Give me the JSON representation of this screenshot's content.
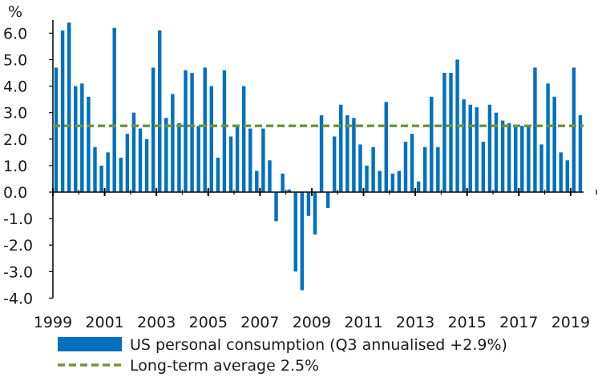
{
  "chart_data": {
    "type": "bar",
    "unit_label": "%",
    "ylim": [
      -4.0,
      6.5
    ],
    "yticks": [
      "6.0",
      "5.0",
      "4.0",
      "3.0",
      "2.0",
      "1.0",
      "0.0",
      "-1.0",
      "-2.0",
      "-3.0",
      "-4.0"
    ],
    "ytick_values": [
      6,
      5,
      4,
      3,
      2,
      1,
      0,
      -1,
      -2,
      -3,
      -4
    ],
    "xticks": [
      "1999",
      "2001",
      "2003",
      "2005",
      "2007",
      "2009",
      "2011",
      "2013",
      "2015",
      "2017",
      "2019"
    ],
    "start_year": 1999,
    "periods_per_year": 4,
    "series": [
      {
        "name": "US personal consumption (Q3 annualised +2.9%)",
        "type": "bar",
        "color": "#0070c0",
        "values": [
          4.7,
          6.1,
          6.4,
          4.0,
          4.1,
          3.6,
          1.7,
          1.0,
          1.5,
          6.2,
          1.3,
          2.2,
          3.0,
          2.4,
          2.0,
          4.7,
          6.1,
          2.8,
          3.7,
          2.6,
          4.6,
          4.5,
          2.5,
          4.7,
          4.0,
          1.3,
          4.6,
          2.1,
          2.5,
          4.0,
          2.4,
          0.8,
          2.4,
          1.2,
          -1.1,
          0.7,
          0.1,
          -3.0,
          -3.7,
          -0.9,
          -1.6,
          2.9,
          -0.6,
          2.1,
          3.3,
          2.9,
          2.8,
          1.8,
          1.0,
          1.7,
          0.8,
          3.4,
          0.7,
          0.8,
          1.9,
          2.2,
          0.4,
          1.7,
          3.6,
          1.7,
          4.5,
          4.5,
          5.0,
          3.5,
          3.3,
          3.2,
          1.9,
          3.3,
          3.0,
          2.7,
          2.6,
          2.5,
          2.5,
          2.5,
          4.7,
          1.8,
          4.1,
          3.6,
          1.5,
          1.2,
          4.7,
          2.9
        ]
      },
      {
        "name": "Long-term average 2.5%",
        "type": "line",
        "style": "dashed",
        "color": "#70953a",
        "value": 2.5
      }
    ]
  }
}
